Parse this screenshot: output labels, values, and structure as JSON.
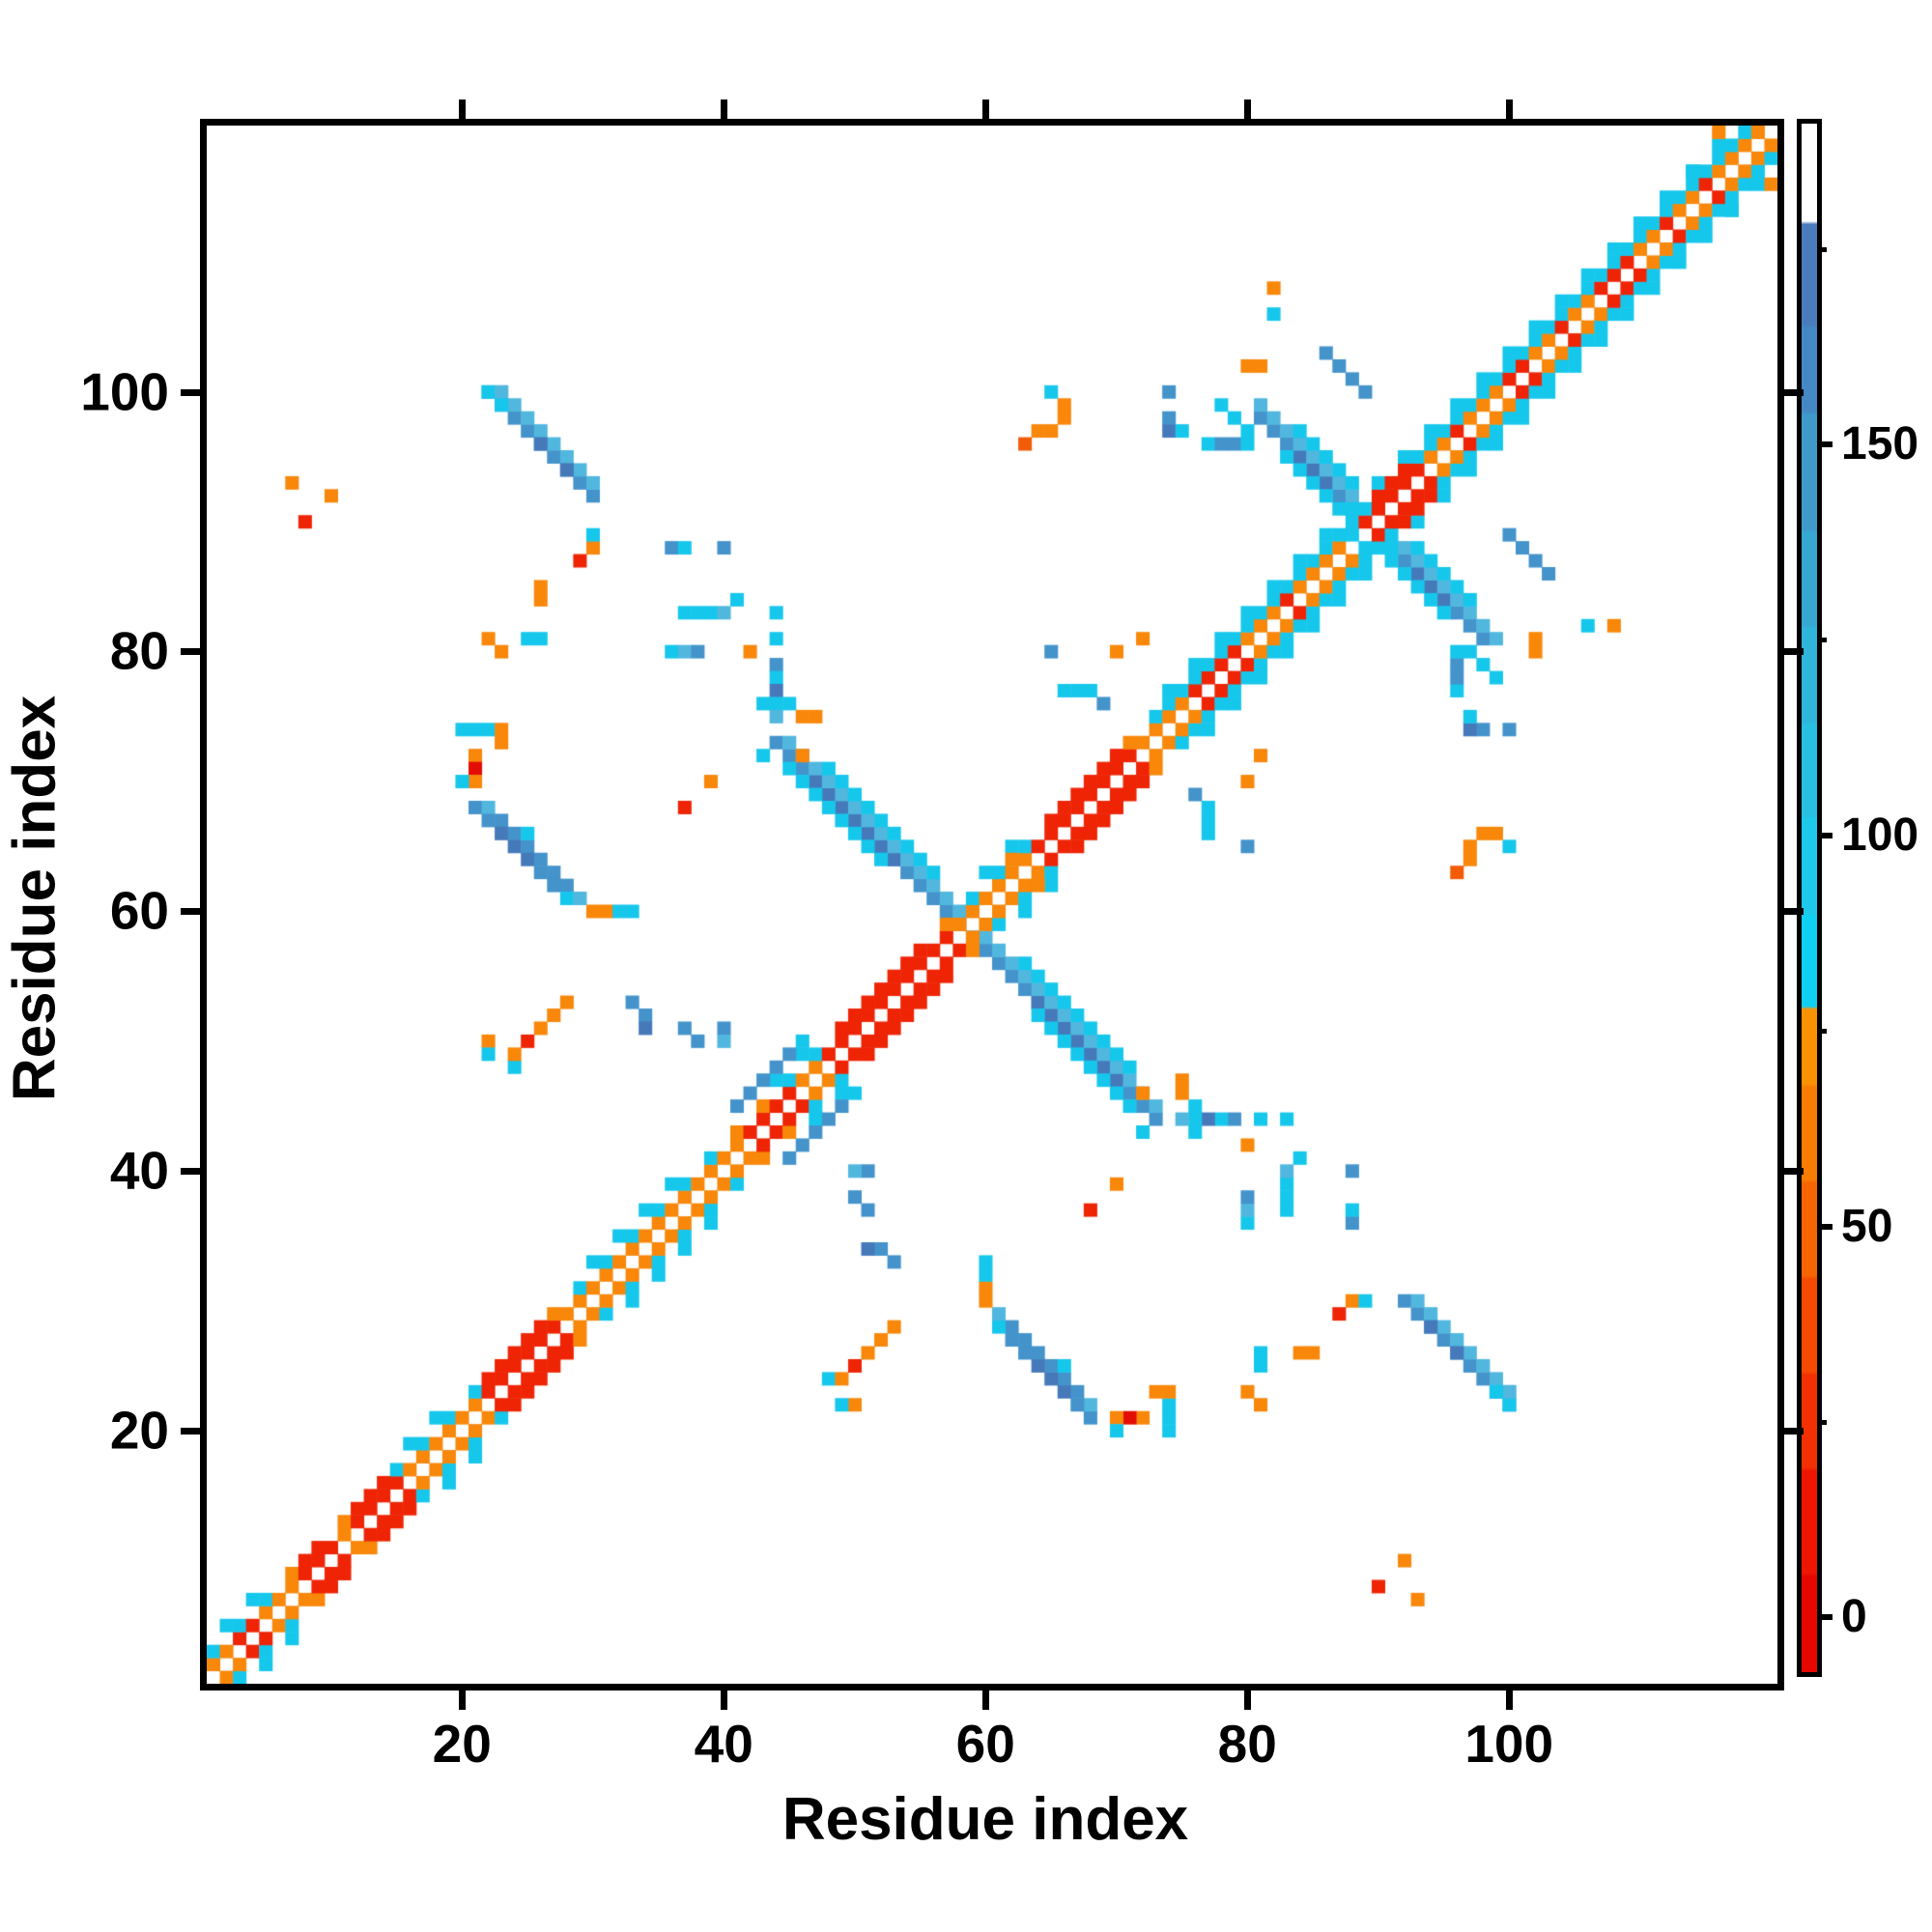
{
  "chart_data": {
    "type": "heatmap",
    "title": "",
    "xlabel": "Residue index",
    "ylabel": "Residue index",
    "n_residues": 120,
    "axis_range": [
      0.5,
      120.5
    ],
    "axis_ticks": [
      20,
      40,
      60,
      80,
      100
    ],
    "grid": false,
    "symmetric": true,
    "background": "#ffffff",
    "legend_position": "right-colorbar",
    "palette": {
      "O": {
        "color": "#f8870a",
        "value": 58
      },
      "O2": {
        "color": "#f25c07",
        "value": 40
      },
      "R": {
        "color": "#ee2405",
        "value": 15
      },
      "R2": {
        "color": "#e30d04",
        "value": 6
      },
      "C": {
        "color": "#16c7ec",
        "value": 85
      },
      "C2": {
        "color": "#51b7de",
        "value": 112
      },
      "B": {
        "color": "#4493cb",
        "value": 142
      },
      "B2": {
        "color": "#4579ba",
        "value": 160
      },
      "W": {
        "color": "#ffffff",
        "value": 190
      }
    },
    "diagonal_band": {
      "d1_color": "O",
      "d1_red_ranges": [
        [
          3,
          4
        ],
        [
          8,
          10
        ],
        [
          12,
          15
        ],
        [
          22,
          27
        ],
        [
          42,
          45
        ],
        [
          48,
          57
        ],
        [
          64,
          71
        ],
        [
          76,
          79
        ],
        [
          89,
          93
        ],
        [
          100,
          101
        ],
        [
          107,
          109
        ],
        [
          83,
          83
        ],
        [
          96,
          96
        ],
        [
          104,
          104
        ],
        [
          112,
          112
        ],
        [
          115,
          115
        ]
      ],
      "d1_cyan": [
        88
      ],
      "d2_red_ranges": [
        [
          8,
          9
        ],
        [
          12,
          14
        ],
        [
          22,
          26
        ],
        [
          49,
          55
        ],
        [
          65,
          70
        ],
        [
          90,
          92
        ]
      ],
      "d2_cyan_zones": [
        [
          1,
          5
        ],
        [
          14,
          21
        ],
        [
          29,
          39
        ],
        [
          44,
          47
        ],
        [
          58,
          63
        ],
        [
          73,
          119
        ]
      ],
      "d2_dense_cyan_zones": [
        [
          74,
          118
        ]
      ],
      "d3_cyan_zones": [
        [
          2,
          4
        ],
        [
          15,
          19
        ],
        [
          30,
          36
        ],
        [
          44,
          46
        ],
        [
          59,
          62
        ],
        [
          74,
          118
        ]
      ]
    },
    "anti_runs": [
      [
        117,
        44,
        58,
        "B"
      ],
      [
        117,
        47,
        53,
        "B2"
      ],
      [
        118,
        45,
        58,
        "C2"
      ],
      [
        116,
        45,
        52,
        "C"
      ],
      [
        119,
        48,
        56,
        "C"
      ],
      [
        179,
        81,
        88,
        "B"
      ],
      [
        179,
        84,
        86,
        "B2"
      ],
      [
        180,
        81,
        88,
        "C2"
      ],
      [
        178,
        83,
        87,
        "C"
      ],
      [
        181,
        84,
        88,
        "C"
      ],
      [
        189,
        86,
        89,
        "B"
      ],
      [
        122,
        22,
        30,
        "B"
      ],
      [
        123,
        23,
        30,
        "C2"
      ]
    ],
    "cells": [
      [
        22,
        100,
        "C"
      ],
      [
        23,
        100,
        "C2"
      ],
      [
        23,
        99,
        "C"
      ],
      [
        26,
        96,
        "B2"
      ],
      [
        28,
        94,
        "B2"
      ],
      [
        20,
        74,
        "C"
      ],
      [
        21,
        74,
        "C"
      ],
      [
        22,
        74,
        "C"
      ],
      [
        23,
        74,
        "O"
      ],
      [
        23,
        73,
        "O"
      ],
      [
        21,
        72,
        "O"
      ],
      [
        21,
        71,
        "R2"
      ],
      [
        21,
        70,
        "O"
      ],
      [
        20,
        70,
        "C"
      ],
      [
        21,
        68,
        "B"
      ],
      [
        22,
        68,
        "C2"
      ],
      [
        22,
        67,
        "B"
      ],
      [
        23,
        67,
        "B"
      ],
      [
        23,
        66,
        "B2"
      ],
      [
        24,
        66,
        "B"
      ],
      [
        24,
        65,
        "B2"
      ],
      [
        25,
        65,
        "B"
      ],
      [
        25,
        64,
        "B2"
      ],
      [
        26,
        64,
        "B"
      ],
      [
        26,
        63,
        "B"
      ],
      [
        27,
        63,
        "B"
      ],
      [
        27,
        62,
        "B"
      ],
      [
        28,
        62,
        "B"
      ],
      [
        28,
        61,
        "C"
      ],
      [
        29,
        61,
        "C2"
      ],
      [
        30,
        60,
        "O"
      ],
      [
        31,
        60,
        "O"
      ],
      [
        32,
        60,
        "C"
      ],
      [
        33,
        60,
        "C"
      ],
      [
        25,
        66,
        "C"
      ],
      [
        26,
        85,
        "O"
      ],
      [
        26,
        84,
        "O"
      ],
      [
        22,
        81,
        "O"
      ],
      [
        23,
        80,
        "O"
      ],
      [
        25,
        81,
        "C"
      ],
      [
        26,
        81,
        "C"
      ],
      [
        7,
        93,
        "O"
      ],
      [
        10,
        92,
        "O"
      ],
      [
        8,
        90,
        "R"
      ],
      [
        29,
        87,
        "R"
      ],
      [
        30,
        88,
        "O"
      ],
      [
        30,
        89,
        "C"
      ],
      [
        36,
        88,
        "B"
      ],
      [
        37,
        88,
        "C"
      ],
      [
        40,
        88,
        "B"
      ],
      [
        37,
        68,
        "R"
      ],
      [
        39,
        70,
        "O"
      ],
      [
        22,
        50,
        "O"
      ],
      [
        22,
        49,
        "C"
      ],
      [
        24,
        48,
        "C"
      ],
      [
        24,
        49,
        "O"
      ],
      [
        25,
        50,
        "R"
      ],
      [
        26,
        51,
        "O"
      ],
      [
        27,
        52,
        "O"
      ],
      [
        28,
        53,
        "O"
      ],
      [
        33,
        53,
        "B"
      ],
      [
        34,
        52,
        "B"
      ],
      [
        34,
        51,
        "B2"
      ],
      [
        37,
        51,
        "B"
      ],
      [
        40,
        51,
        "B"
      ],
      [
        40,
        50,
        "C2"
      ],
      [
        38,
        50,
        "B"
      ],
      [
        41,
        45,
        "B"
      ],
      [
        42,
        46,
        "B"
      ],
      [
        43,
        47,
        "B"
      ],
      [
        44,
        48,
        "B"
      ],
      [
        45,
        49,
        "B"
      ],
      [
        46,
        50,
        "C"
      ],
      [
        43,
        72,
        "C"
      ],
      [
        46,
        72,
        "O"
      ],
      [
        65,
        80,
        "B"
      ],
      [
        66,
        77,
        "C"
      ],
      [
        67,
        77,
        "C"
      ],
      [
        68,
        77,
        "C"
      ],
      [
        69,
        76,
        "B"
      ],
      [
        44,
        83,
        "C"
      ],
      [
        44,
        81,
        "C"
      ],
      [
        44,
        79,
        "B"
      ],
      [
        44,
        78,
        "C"
      ],
      [
        44,
        77,
        "B2"
      ],
      [
        43,
        76,
        "C"
      ],
      [
        44,
        76,
        "C"
      ],
      [
        45,
        76,
        "C"
      ],
      [
        44,
        75,
        "C2"
      ],
      [
        46,
        75,
        "O"
      ],
      [
        47,
        75,
        "O"
      ],
      [
        37,
        83,
        "C"
      ],
      [
        38,
        83,
        "C"
      ],
      [
        39,
        83,
        "C"
      ],
      [
        40,
        83,
        "C2"
      ],
      [
        36,
        80,
        "C"
      ],
      [
        37,
        80,
        "C2"
      ],
      [
        38,
        80,
        "B"
      ],
      [
        41,
        84,
        "C"
      ],
      [
        42,
        80,
        "O"
      ],
      [
        62,
        64,
        "O"
      ],
      [
        65,
        100,
        "C"
      ],
      [
        66,
        99,
        "O"
      ],
      [
        66,
        98,
        "O"
      ],
      [
        65,
        97,
        "O"
      ],
      [
        64,
        97,
        "O"
      ],
      [
        63,
        96,
        "O2"
      ],
      [
        74,
        100,
        "B"
      ],
      [
        74,
        98,
        "B"
      ],
      [
        74,
        97,
        "B2"
      ],
      [
        75,
        97,
        "C"
      ],
      [
        77,
        96,
        "C"
      ],
      [
        78,
        96,
        "B"
      ],
      [
        79,
        96,
        "B"
      ],
      [
        80,
        96,
        "C"
      ],
      [
        78,
        99,
        "C"
      ],
      [
        79,
        98,
        "C"
      ],
      [
        80,
        97,
        "C"
      ],
      [
        70,
        80,
        "O"
      ],
      [
        72,
        81,
        "O"
      ],
      [
        106,
        82,
        "C"
      ],
      [
        108,
        82,
        "O"
      ],
      [
        80,
        102,
        "O"
      ],
      [
        81,
        102,
        "O"
      ],
      [
        116,
        120,
        "O"
      ],
      [
        114,
        117,
        "C"
      ]
    ],
    "colorbar": {
      "ticks": [
        0,
        50,
        100,
        150
      ],
      "minor_ticks": [
        25,
        75,
        125,
        175
      ],
      "domain": [
        -7,
        191
      ],
      "stops": [
        [
          0.0,
          "#e60800"
        ],
        [
          0.062,
          "#e60800"
        ],
        [
          0.064,
          "#ee1602"
        ],
        [
          0.13,
          "#ee1602"
        ],
        [
          0.132,
          "#f23001"
        ],
        [
          0.192,
          "#f23001"
        ],
        [
          0.194,
          "#f54a01"
        ],
        [
          0.254,
          "#f54a01"
        ],
        [
          0.256,
          "#f66501"
        ],
        [
          0.316,
          "#f66501"
        ],
        [
          0.318,
          "#f87c01"
        ],
        [
          0.378,
          "#f87c01"
        ],
        [
          0.38,
          "#fa9101"
        ],
        [
          0.428,
          "#fa9101"
        ],
        [
          0.43,
          "#0fd0f2"
        ],
        [
          0.488,
          "#0fd0f2"
        ],
        [
          0.49,
          "#1ec8ea"
        ],
        [
          0.551,
          "#1ec8ea"
        ],
        [
          0.553,
          "#27bfe2"
        ],
        [
          0.612,
          "#27bfe2"
        ],
        [
          0.614,
          "#2fb4da"
        ],
        [
          0.674,
          "#2fb4da"
        ],
        [
          0.676,
          "#37a8d2"
        ],
        [
          0.736,
          "#37a8d2"
        ],
        [
          0.738,
          "#3f9aca"
        ],
        [
          0.812,
          "#3f9aca"
        ],
        [
          0.814,
          "#4489c4"
        ],
        [
          0.868,
          "#4489c4"
        ],
        [
          0.87,
          "#4a7bbd"
        ],
        [
          0.935,
          "#4a7bbd"
        ],
        [
          0.937,
          "#ffffff"
        ],
        [
          1.0,
          "#ffffff"
        ]
      ]
    }
  }
}
